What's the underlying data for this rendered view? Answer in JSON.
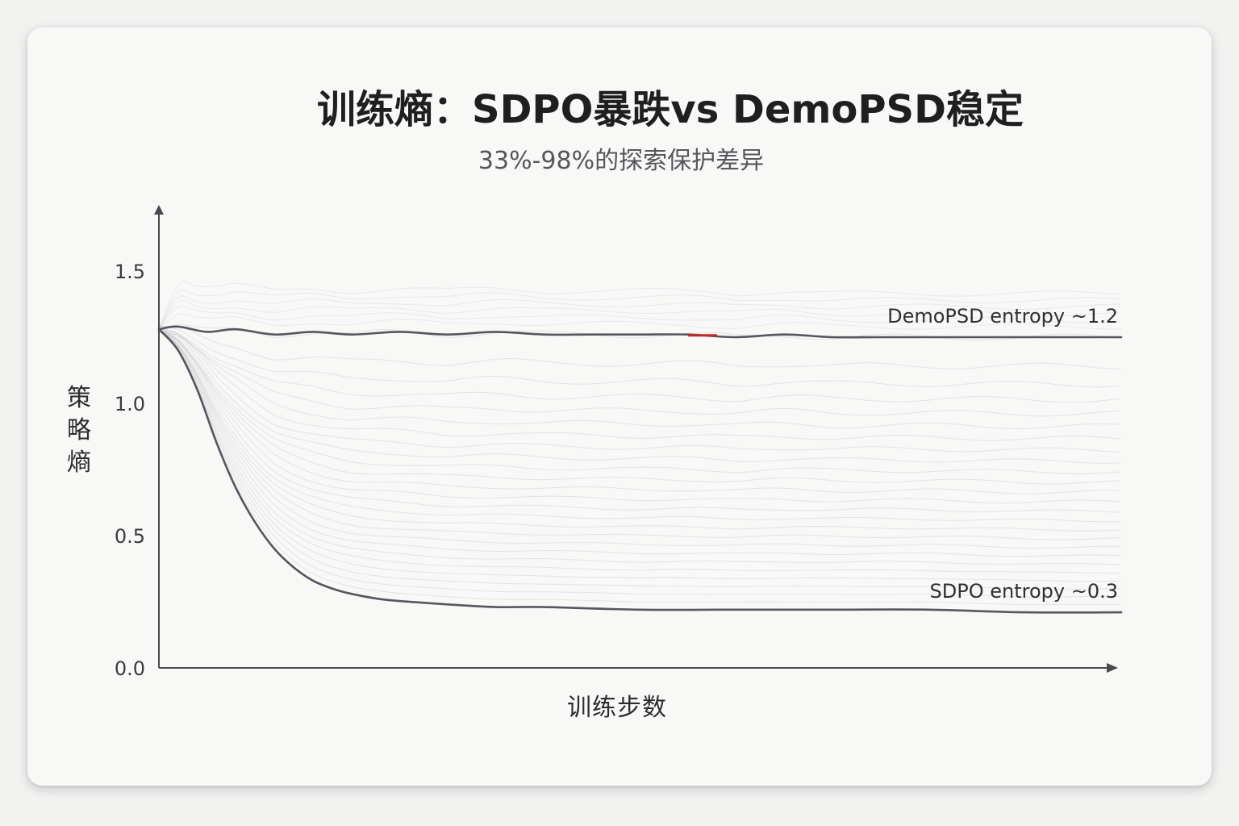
{
  "title": "训练熵：SDPO暴跌vs DemoPSD稳定",
  "subtitle": "33%-98%的探索保护差异",
  "colors": {
    "line": "#55575f",
    "axis": "#4a4b50",
    "accent": "#c62828",
    "faint": "#bdbdc2"
  },
  "chart_data": {
    "type": "line",
    "title": "训练熵：SDPO暴跌vs DemoPSD稳定",
    "subtitle": "33%-98%的探索保护差异",
    "xlabel": "训练步数",
    "ylabel": "策略熵",
    "ylim": [
      0,
      1.75
    ],
    "yticks": [
      0.0,
      0.5,
      1.0,
      1.5
    ],
    "ytick_labels": [
      "0.0",
      "0.5",
      "1.0",
      "1.5"
    ],
    "xlim": [
      0,
      100
    ],
    "grid": false,
    "series": [
      {
        "name": "DemoPSD entropy ~1.2",
        "label": "DemoPSD entropy ~1.2",
        "x": [
          0,
          2,
          5,
          8,
          12,
          16,
          20,
          25,
          30,
          35,
          40,
          45,
          50,
          55,
          60,
          65,
          70,
          75,
          80,
          85,
          90,
          95,
          100
        ],
        "values": [
          1.28,
          1.29,
          1.27,
          1.28,
          1.26,
          1.27,
          1.26,
          1.27,
          1.26,
          1.27,
          1.26,
          1.26,
          1.26,
          1.26,
          1.25,
          1.26,
          1.25,
          1.25,
          1.25,
          1.25,
          1.25,
          1.25,
          1.25
        ]
      },
      {
        "name": "SDPO entropy ~0.3",
        "label": "SDPO entropy ~0.3",
        "x": [
          0,
          2,
          4,
          6,
          8,
          10,
          12,
          14,
          16,
          18,
          20,
          23,
          26,
          30,
          35,
          40,
          50,
          60,
          70,
          80,
          90,
          100
        ],
        "values": [
          1.28,
          1.2,
          1.05,
          0.85,
          0.68,
          0.55,
          0.45,
          0.38,
          0.33,
          0.3,
          0.28,
          0.26,
          0.25,
          0.24,
          0.23,
          0.23,
          0.22,
          0.22,
          0.22,
          0.22,
          0.21,
          0.21
        ]
      }
    ],
    "highlight": {
      "series": "DemoPSD entropy ~1.2",
      "x_range": [
        55,
        58
      ]
    }
  }
}
